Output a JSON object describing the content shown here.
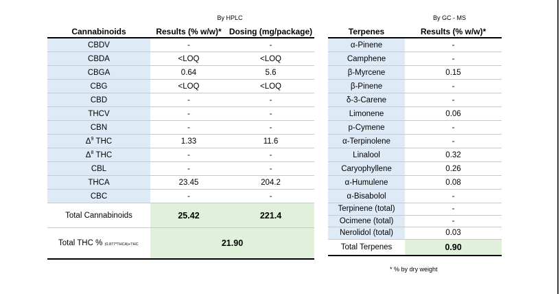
{
  "methods": {
    "left": "By HPLC",
    "right": "By GC - MS"
  },
  "cannabinoids": {
    "headers": [
      "Cannabinoids",
      "Results (% w/w)*",
      "Dosing (mg/package)"
    ],
    "rows": [
      {
        "name": "CBDV",
        "result": "-",
        "dosing": "-"
      },
      {
        "name": "CBDA",
        "result": "<LOQ",
        "dosing": "<LOQ"
      },
      {
        "name": "CBGA",
        "result": "0.64",
        "dosing": "5.6"
      },
      {
        "name": "CBG",
        "result": "<LOQ",
        "dosing": "<LOQ"
      },
      {
        "name": "CBD",
        "result": "-",
        "dosing": "-"
      },
      {
        "name": "THCV",
        "result": "-",
        "dosing": "-"
      },
      {
        "name": "CBN",
        "result": "-",
        "dosing": "-"
      },
      {
        "name": "THC",
        "prefix": "Δ",
        "sup": "9",
        "result": "1.33",
        "dosing": "11.6"
      },
      {
        "name": "THC",
        "prefix": "Δ",
        "sup": "8",
        "result": "-",
        "dosing": "-"
      },
      {
        "name": "CBL",
        "result": "-",
        "dosing": "-"
      },
      {
        "name": "THCA",
        "result": "23.45",
        "dosing": "204.2"
      },
      {
        "name": "CBC",
        "result": "-",
        "dosing": "-"
      }
    ],
    "total": {
      "label": "Total Cannabinoids",
      "result": "25.42",
      "dosing": "221.4"
    },
    "total_thc": {
      "label": "Total THC %",
      "formula": "(0.877*THCA)+THC",
      "value": "21.90"
    }
  },
  "terpenes": {
    "headers": [
      "Terpenes",
      "Results (% w/w)*"
    ],
    "rows": [
      {
        "name": "α-Pinene",
        "result": "-"
      },
      {
        "name": "Camphene",
        "result": "-"
      },
      {
        "name": "β-Myrcene",
        "result": "0.15"
      },
      {
        "name": "β-Pinene",
        "result": "-"
      },
      {
        "name": "δ-3-Carene",
        "result": "-"
      },
      {
        "name": "Limonene",
        "result": "0.06"
      },
      {
        "name": "p-Cymene",
        "result": "-"
      },
      {
        "name": "α-Terpinolene",
        "result": "-"
      },
      {
        "name": "Linalool",
        "result": "0.32"
      },
      {
        "name": "Caryophyllene",
        "result": "0.26"
      },
      {
        "name": "α-Humulene",
        "result": "0.08"
      },
      {
        "name": "α-Bisabolol",
        "result": "-"
      },
      {
        "name": "Terpinene (total)",
        "result": "-"
      },
      {
        "name": "Ocimene (total)",
        "result": "-"
      },
      {
        "name": "Nerolidol (total)",
        "result": "0.03"
      }
    ],
    "total": {
      "label": "Total Terpenes",
      "value": "0.90"
    }
  },
  "footnote": "* % by dry weight",
  "colors": {
    "label_fill": "#deebf6",
    "total_fill": "#e1f0da"
  }
}
